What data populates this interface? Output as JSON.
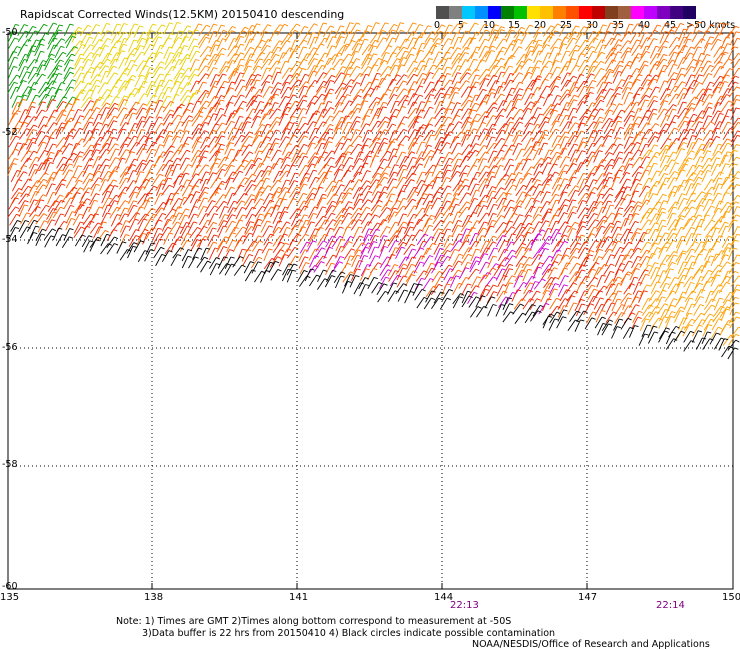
{
  "title": "Rapidscat Corrected Winds(12.5KM) 20150410 descending",
  "legend": {
    "colors": [
      "#505050",
      "#808080",
      "#00c8ff",
      "#0090ff",
      "#0000ff",
      "#008000",
      "#00c000",
      "#ffe000",
      "#ffc000",
      "#ff8000",
      "#ff5000",
      "#ff0000",
      "#c00000",
      "#804020",
      "#a06040",
      "#ff00ff",
      "#c000ff",
      "#8000c0",
      "#400080",
      "#200060"
    ],
    "labels": [
      "0",
      "5",
      "10",
      "15",
      "20",
      "25",
      "30",
      "35",
      "40",
      "45",
      ">50 knots"
    ]
  },
  "lat_labels": [
    "-50",
    "-52",
    "-54",
    "-56",
    "-58",
    "-60"
  ],
  "lon_labels": [
    "135",
    "138",
    "141",
    "144",
    "147",
    "150"
  ],
  "times": [
    "22:13",
    "22:14"
  ],
  "notes": {
    "line1": "Note: 1) Times are GMT 2)Times along bottom correspond to measurement at -50S",
    "line2": "3)Data buffer is 22 hrs from 20150410 4) Black circles indicate possible contamination",
    "line3": "NOAA/NESDIS/Office of Research and Applications"
  }
}
